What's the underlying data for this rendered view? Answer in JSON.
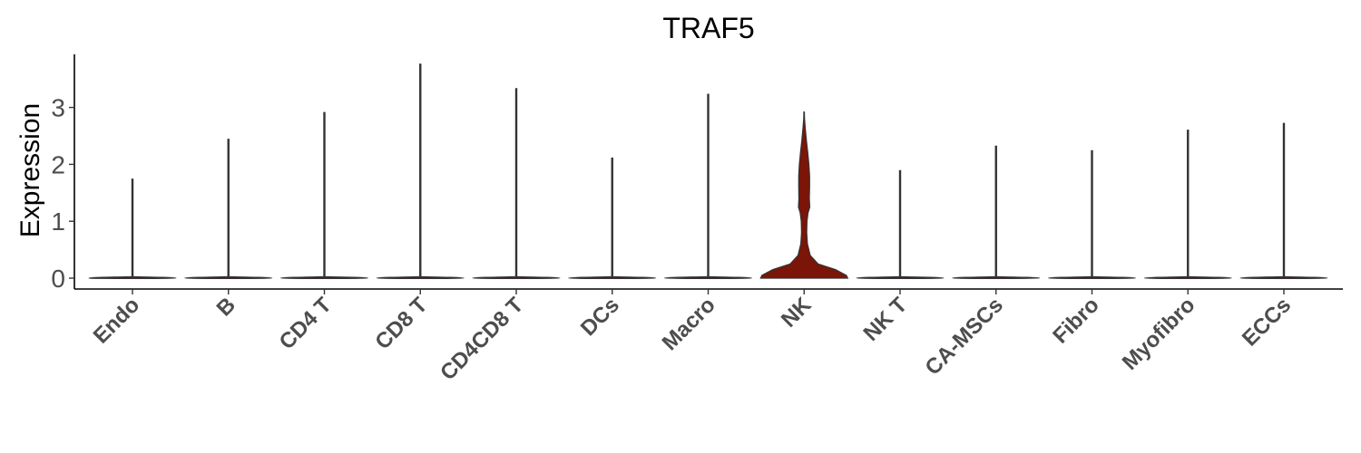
{
  "chart_data": {
    "type": "violin",
    "title": "TRAF5",
    "xlabel": "",
    "ylabel": "Expression",
    "ylim": [
      -0.2,
      3.9
    ],
    "yticks": [
      0,
      1,
      2,
      3
    ],
    "grid": false,
    "legend": "none",
    "colors": {
      "fill": "#7b1508",
      "line": "#333333"
    },
    "categories": [
      "Endo",
      "B",
      "CD4 T",
      "CD8 T",
      "CD4CD8 T",
      "DCs",
      "Macro",
      "NK",
      "NK T",
      "CA-MSCs",
      "Fibro",
      "Myofibro",
      "ECCs"
    ],
    "max_values": [
      1.74,
      2.44,
      2.91,
      3.76,
      3.33,
      2.11,
      3.23,
      2.92,
      1.89,
      2.32,
      2.24,
      2.6,
      2.72
    ],
    "nk_density": {
      "y": [
        0,
        0.05,
        0.15,
        0.25,
        0.4,
        0.6,
        0.8,
        1.0,
        1.15,
        1.25,
        1.4,
        1.6,
        1.8,
        2.0,
        2.2,
        2.4,
        2.6,
        2.8,
        2.92
      ],
      "half_width": [
        1.0,
        0.97,
        0.72,
        0.32,
        0.14,
        0.075,
        0.06,
        0.065,
        0.09,
        0.13,
        0.12,
        0.125,
        0.125,
        0.11,
        0.085,
        0.055,
        0.03,
        0.01,
        0.005
      ]
    }
  }
}
